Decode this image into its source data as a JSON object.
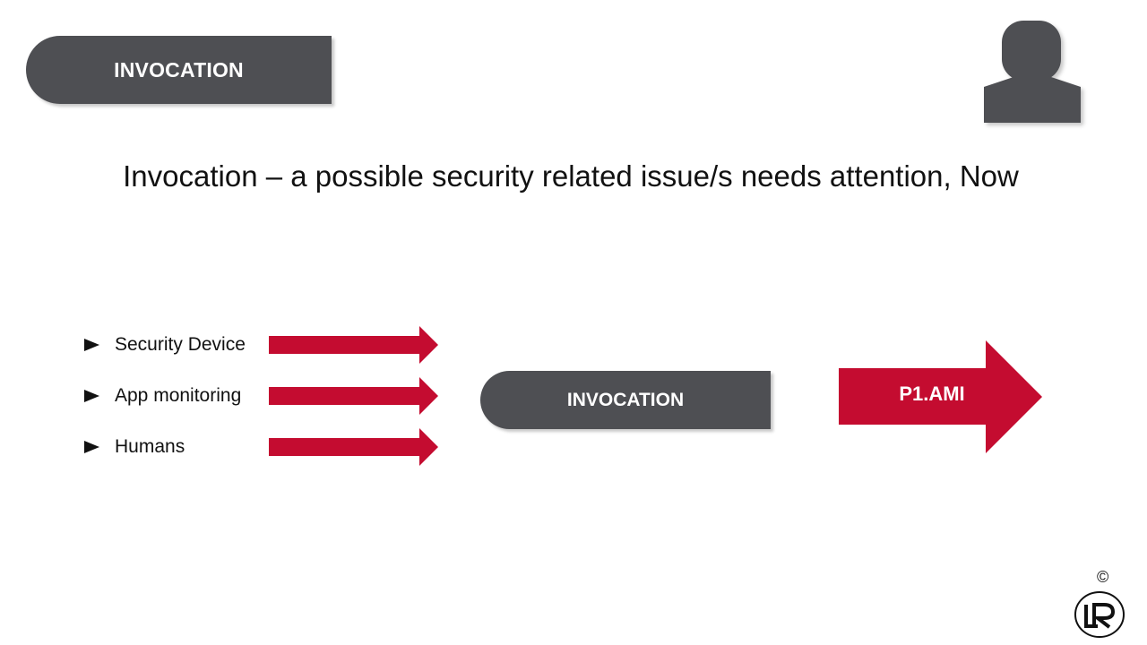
{
  "header": {
    "tag_label": "INVOCATION"
  },
  "avatar": {
    "icon": "user-silhouette-icon",
    "color": "#4e4f53"
  },
  "heading": "Invocation – a possible security related issue/s needs attention, Now",
  "sources": {
    "items": [
      {
        "label": "Security Device"
      },
      {
        "label": "App monitoring"
      },
      {
        "label": "Humans"
      }
    ],
    "bullet_icon": "triangle-bullet-icon"
  },
  "center_tag": {
    "label": "INVOCATION"
  },
  "output": {
    "label": "P1.AMI"
  },
  "footer": {
    "copyright": "©",
    "logo_icon": "lr-logo-icon"
  },
  "colors": {
    "accent_red": "#c40c30",
    "tag_gray": "#4e4f53",
    "text": "#111111",
    "background": "#ffffff"
  }
}
